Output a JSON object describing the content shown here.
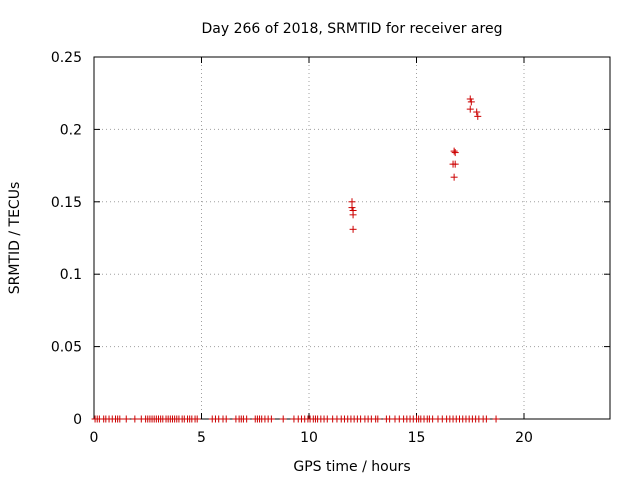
{
  "chart_data": {
    "type": "scatter",
    "title": "Day 266 of 2018, SRMTID for receiver areg",
    "xlabel": "GPS time / hours",
    "ylabel": "SRMTID / TECUs",
    "xlim": [
      0,
      24
    ],
    "ylim": [
      0,
      0.25
    ],
    "x_ticks": [
      0,
      5,
      10,
      15,
      20
    ],
    "y_ticks": [
      0,
      0.05,
      0.1,
      0.15,
      0.2,
      0.25
    ],
    "x_tick_labels": [
      "0",
      "5",
      "10",
      "15",
      "20"
    ],
    "y_tick_labels": [
      "0",
      "0.05",
      "0.1",
      "0.15",
      "0.2",
      "0.25"
    ],
    "grid": true,
    "marker": "plus",
    "color": "#cc0000",
    "series": [
      {
        "points": [
          [
            12.0,
            0.15
          ],
          [
            12.0,
            0.146
          ],
          [
            12.05,
            0.144
          ],
          [
            12.05,
            0.141
          ],
          [
            12.05,
            0.131
          ],
          [
            16.75,
            0.185
          ],
          [
            16.8,
            0.184
          ],
          [
            16.7,
            0.176
          ],
          [
            16.8,
            0.176
          ],
          [
            16.75,
            0.167
          ],
          [
            17.5,
            0.221
          ],
          [
            17.55,
            0.219
          ],
          [
            17.5,
            0.214
          ],
          [
            17.8,
            0.212
          ],
          [
            17.85,
            0.209
          ]
        ],
        "zero_x": [
          0.05,
          0.15,
          0.25,
          0.45,
          0.55,
          0.7,
          0.85,
          1.0,
          1.1,
          1.2,
          1.5,
          1.9,
          2.2,
          2.4,
          2.5,
          2.6,
          2.7,
          2.8,
          2.9,
          3.0,
          3.1,
          3.2,
          3.35,
          3.45,
          3.55,
          3.65,
          3.75,
          3.85,
          3.95,
          4.1,
          4.2,
          4.35,
          4.45,
          4.55,
          4.7,
          4.8,
          5.5,
          5.65,
          5.8,
          6.0,
          6.15,
          6.6,
          6.75,
          6.85,
          6.95,
          7.1,
          7.5,
          7.6,
          7.7,
          7.8,
          7.95,
          8.1,
          8.25,
          8.8,
          9.3,
          9.5,
          9.65,
          9.8,
          9.95,
          10.05,
          10.2,
          10.3,
          10.4,
          10.55,
          10.7,
          10.85,
          11.1,
          11.3,
          11.5,
          11.65,
          11.8,
          11.95,
          12.1,
          12.25,
          12.4,
          12.6,
          12.75,
          12.9,
          13.1,
          13.2,
          13.6,
          13.75,
          14.0,
          14.2,
          14.4,
          14.55,
          14.7,
          14.85,
          15.0,
          15.1,
          15.2,
          15.35,
          15.5,
          15.6,
          15.75,
          16.0,
          16.2,
          16.4,
          16.55,
          16.7,
          16.85,
          17.0,
          17.15,
          17.3,
          17.45,
          17.6,
          17.75,
          17.9,
          18.1,
          18.25,
          18.7
        ]
      }
    ]
  }
}
